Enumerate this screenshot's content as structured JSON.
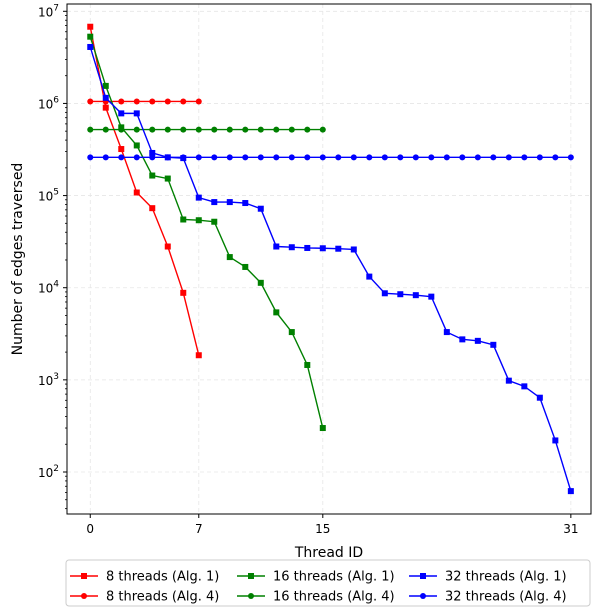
{
  "chart_data": {
    "type": "line",
    "xlabel": "Thread ID",
    "ylabel": "Number of edges traversed",
    "xlim": [
      -1.5,
      32.3
    ],
    "ylim": [
      35,
      12000000
    ],
    "yscale": "log",
    "grid": true,
    "legend_placement": "bottom",
    "x_ticks": [
      0,
      7,
      15,
      31
    ],
    "y_ticks": [
      {
        "value": 100,
        "base": "10",
        "exp": "2"
      },
      {
        "value": 1000,
        "base": "10",
        "exp": "3"
      },
      {
        "value": 10000,
        "base": "10",
        "exp": "4"
      },
      {
        "value": 100000,
        "base": "10",
        "exp": "5"
      },
      {
        "value": 1000000,
        "base": "10",
        "exp": "6"
      },
      {
        "value": 10000000,
        "base": "10",
        "exp": "7"
      }
    ],
    "series": [
      {
        "name": "8 threads (Alg. 1)",
        "color": "#ff0000",
        "marker": "square",
        "x": [
          0,
          1,
          2,
          3,
          4,
          5,
          6,
          7
        ],
        "y": [
          6800000,
          900000,
          320000,
          108000,
          73000,
          28000,
          8800,
          1850
        ]
      },
      {
        "name": "8 threads (Alg. 4)",
        "color": "#ff0000",
        "marker": "circle",
        "x": [
          0,
          1,
          2,
          3,
          4,
          5,
          6,
          7
        ],
        "y": [
          1050000,
          1050000,
          1050000,
          1050000,
          1050000,
          1050000,
          1050000,
          1050000
        ]
      },
      {
        "name": "16 threads (Alg. 1)",
        "color": "#008000",
        "marker": "square",
        "x": [
          0,
          1,
          2,
          3,
          4,
          5,
          6,
          7,
          8,
          9,
          10,
          11,
          12,
          13,
          14,
          15
        ],
        "y": [
          5300000,
          1550000,
          550000,
          350000,
          165000,
          153000,
          55000,
          54000,
          52000,
          21500,
          16800,
          11300,
          5400,
          3300,
          1450,
          300
        ]
      },
      {
        "name": "16 threads (Alg. 4)",
        "color": "#008000",
        "marker": "circle",
        "x": [
          0,
          1,
          2,
          3,
          4,
          5,
          6,
          7,
          8,
          9,
          10,
          11,
          12,
          13,
          14,
          15
        ],
        "y": [
          520000,
          520000,
          520000,
          520000,
          520000,
          520000,
          520000,
          520000,
          520000,
          520000,
          520000,
          520000,
          520000,
          520000,
          520000,
          520000
        ]
      },
      {
        "name": "32 threads (Alg. 1)",
        "color": "#0000ff",
        "marker": "square",
        "x": [
          0,
          1,
          2,
          3,
          4,
          5,
          6,
          7,
          8,
          9,
          10,
          11,
          12,
          13,
          14,
          15,
          16,
          17,
          18,
          19,
          20,
          21,
          22,
          23,
          24,
          25,
          26,
          27,
          28,
          29,
          30,
          31
        ],
        "y": [
          4100000,
          1150000,
          780000,
          780000,
          290000,
          260000,
          255000,
          95000,
          85000,
          85000,
          83000,
          72000,
          28000,
          27500,
          27000,
          26800,
          26500,
          26000,
          13200,
          8700,
          8500,
          8300,
          8000,
          3300,
          2750,
          2650,
          2400,
          980,
          850,
          640,
          220,
          62
        ]
      },
      {
        "name": "32 threads (Alg. 4)",
        "color": "#0000ff",
        "marker": "circle",
        "x": [
          0,
          1,
          2,
          3,
          4,
          5,
          6,
          7,
          8,
          9,
          10,
          11,
          12,
          13,
          14,
          15,
          16,
          17,
          18,
          19,
          20,
          21,
          22,
          23,
          24,
          25,
          26,
          27,
          28,
          29,
          30,
          31
        ],
        "y": [
          260000,
          260000,
          260000,
          260000,
          260000,
          260000,
          260000,
          260000,
          260000,
          260000,
          260000,
          260000,
          260000,
          260000,
          260000,
          260000,
          260000,
          260000,
          260000,
          260000,
          260000,
          260000,
          260000,
          260000,
          260000,
          260000,
          260000,
          260000,
          260000,
          260000,
          260000,
          260000
        ]
      }
    ]
  }
}
